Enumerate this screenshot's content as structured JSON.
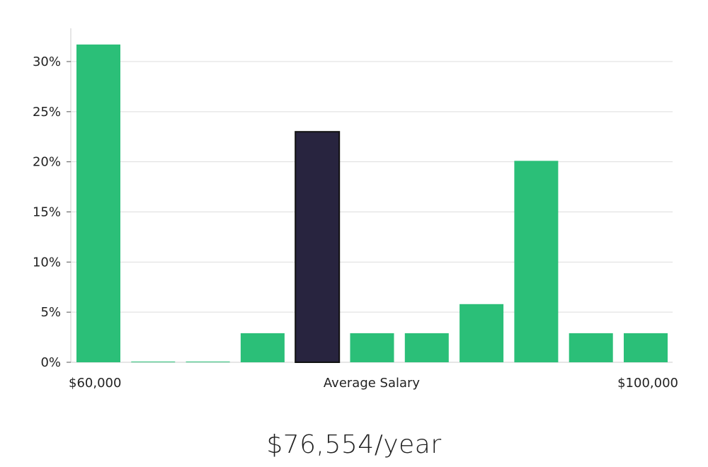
{
  "chart_data": {
    "type": "bar",
    "xlabel": "Average Salary",
    "x_min_label": "$60,000",
    "x_max_label": "$100,000",
    "ylim": [
      0,
      33
    ],
    "yticks": [
      0,
      5,
      10,
      15,
      20,
      25,
      30
    ],
    "ytick_labels": [
      "0%",
      "5%",
      "10%",
      "15%",
      "20%",
      "25%",
      "30%"
    ],
    "grid": true,
    "values": [
      31.7,
      0,
      0,
      2.9,
      23.0,
      2.9,
      2.9,
      5.8,
      20.1,
      2.9,
      2.9
    ],
    "highlight_index": 4,
    "colors": {
      "bar": "#2bbf78",
      "highlight": "#28243f",
      "highlight_stroke": "#111111",
      "grid": "#dddddd",
      "axis": "#cccccc"
    }
  },
  "salary_label": "$76,554/year"
}
